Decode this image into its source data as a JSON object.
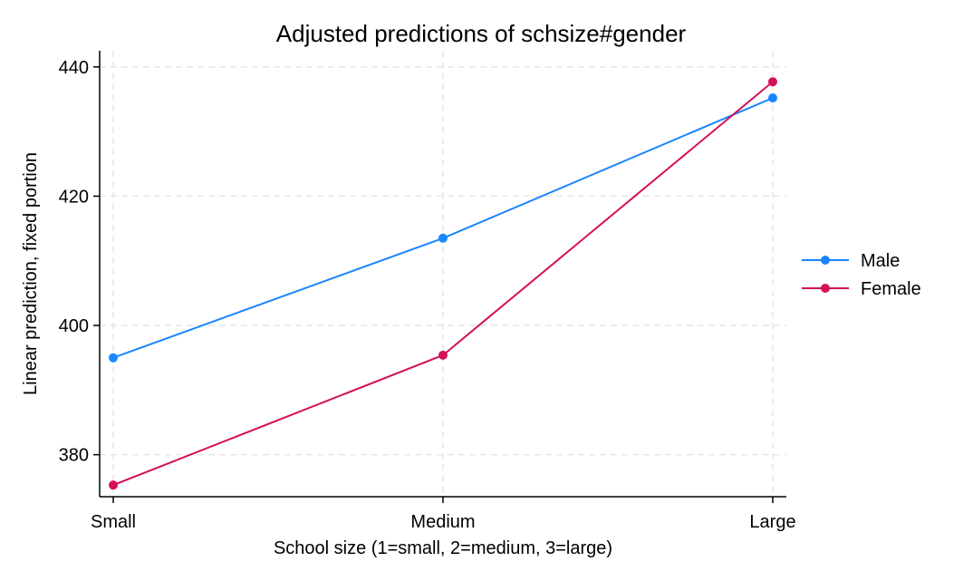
{
  "chart_data": {
    "type": "line",
    "title": "Adjusted predictions of schsize#gender",
    "xlabel": "School size (1=small, 2=medium, 3=large)",
    "ylabel": "Linear prediction, fixed portion",
    "categories": [
      "Small",
      "Medium",
      "Large"
    ],
    "yticks": [
      "380",
      "400",
      "420",
      "440"
    ],
    "ylim": [
      373.5,
      442.5
    ],
    "grid": true,
    "legend_position": "right",
    "series": [
      {
        "name": "Male",
        "color": "#1a85ff",
        "values": [
          395.0,
          413.5,
          435.2
        ]
      },
      {
        "name": "Female",
        "color": "#d41159",
        "values": [
          375.3,
          395.4,
          437.7
        ]
      }
    ]
  }
}
